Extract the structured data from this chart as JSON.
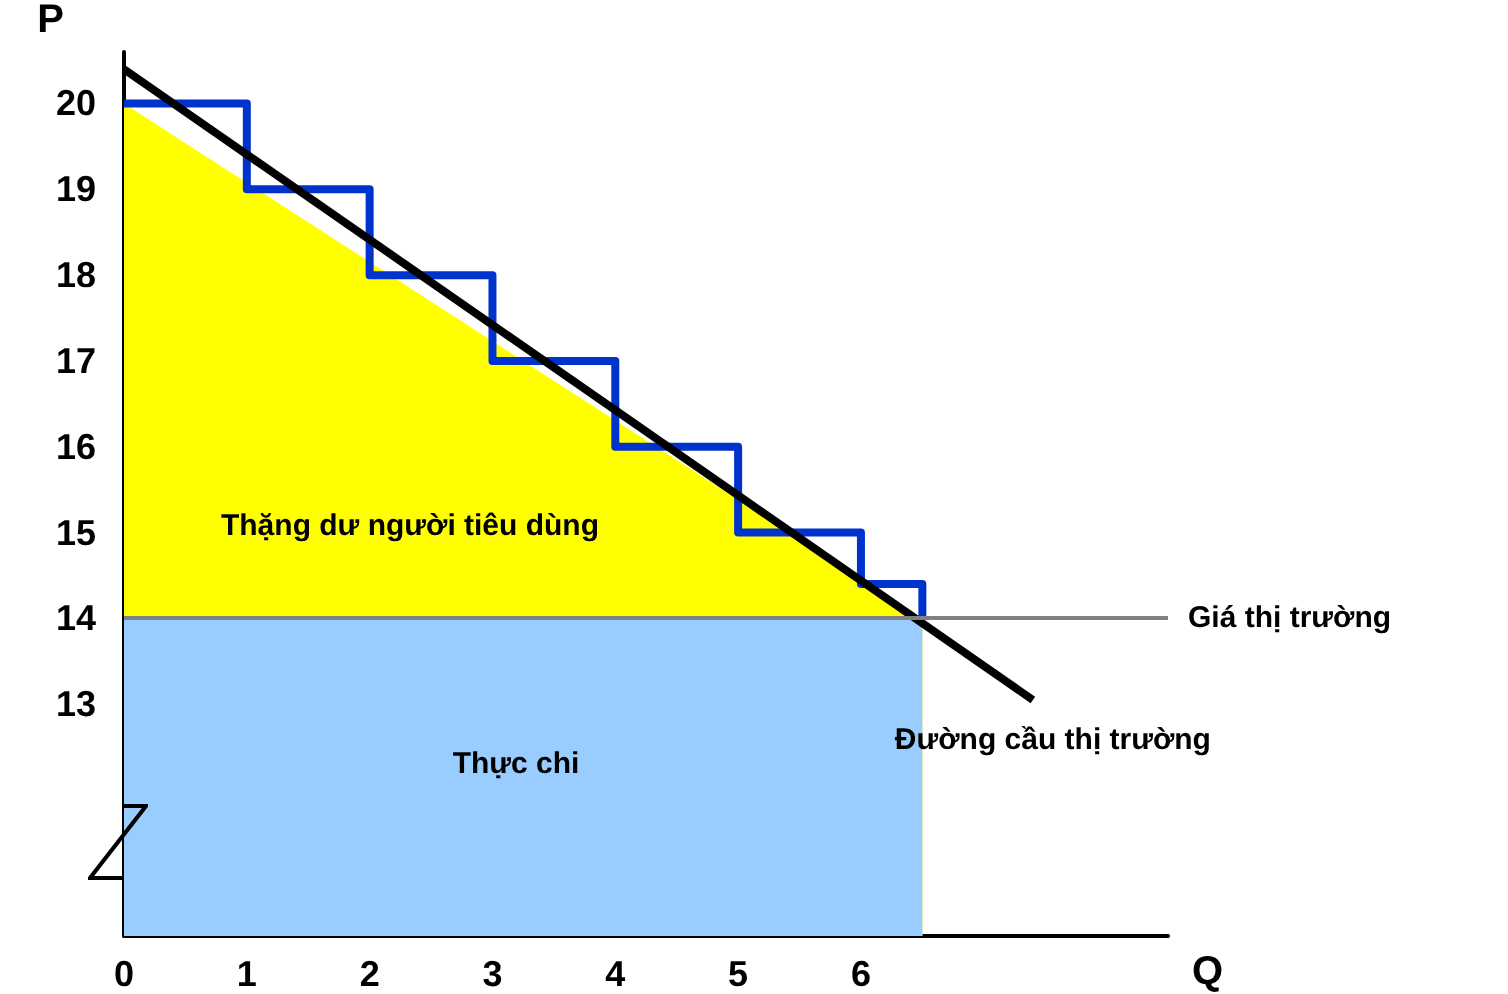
{
  "chart_data": {
    "type": "line",
    "xlabel": "Q",
    "ylabel": "P",
    "xlim": [
      0,
      8.5
    ],
    "xticks": [
      0,
      1,
      2,
      3,
      4,
      5,
      6
    ],
    "ylim": [
      10.3,
      20.6
    ],
    "yticks": [
      13,
      14,
      15,
      16,
      17,
      18,
      19,
      20
    ],
    "series": [
      {
        "type": "area",
        "color": "#ffff00",
        "x": [
          0,
          6.5
        ],
        "values": [
          20,
          14
        ]
      },
      {
        "type": "area",
        "color": "#99ccff",
        "x": [
          0,
          6.5
        ],
        "values": [
          14,
          14
        ]
      },
      {
        "type": "step",
        "color": "#0033cc",
        "x": [
          0,
          1,
          2,
          3,
          4,
          5,
          6,
          6.5
        ],
        "values": [
          20,
          19,
          18,
          17,
          16,
          15,
          14.4,
          14
        ]
      },
      {
        "color": "#000000",
        "x": [
          0,
          7.4
        ],
        "values": [
          20.4,
          13.05
        ]
      }
    ],
    "ref_lines": [
      {
        "axis": "y",
        "value": 14,
        "label": "Giá thị trường",
        "color": "#808080"
      }
    ],
    "annotations": [
      "Thặng dư người tiêu dùng",
      "Thực chi",
      {
        "text": "Đường cầu thị trường",
        "x": 7.4,
        "y": 13.05
      }
    ],
    "grid": false,
    "marker": "none",
    "line_style": "solid"
  }
}
